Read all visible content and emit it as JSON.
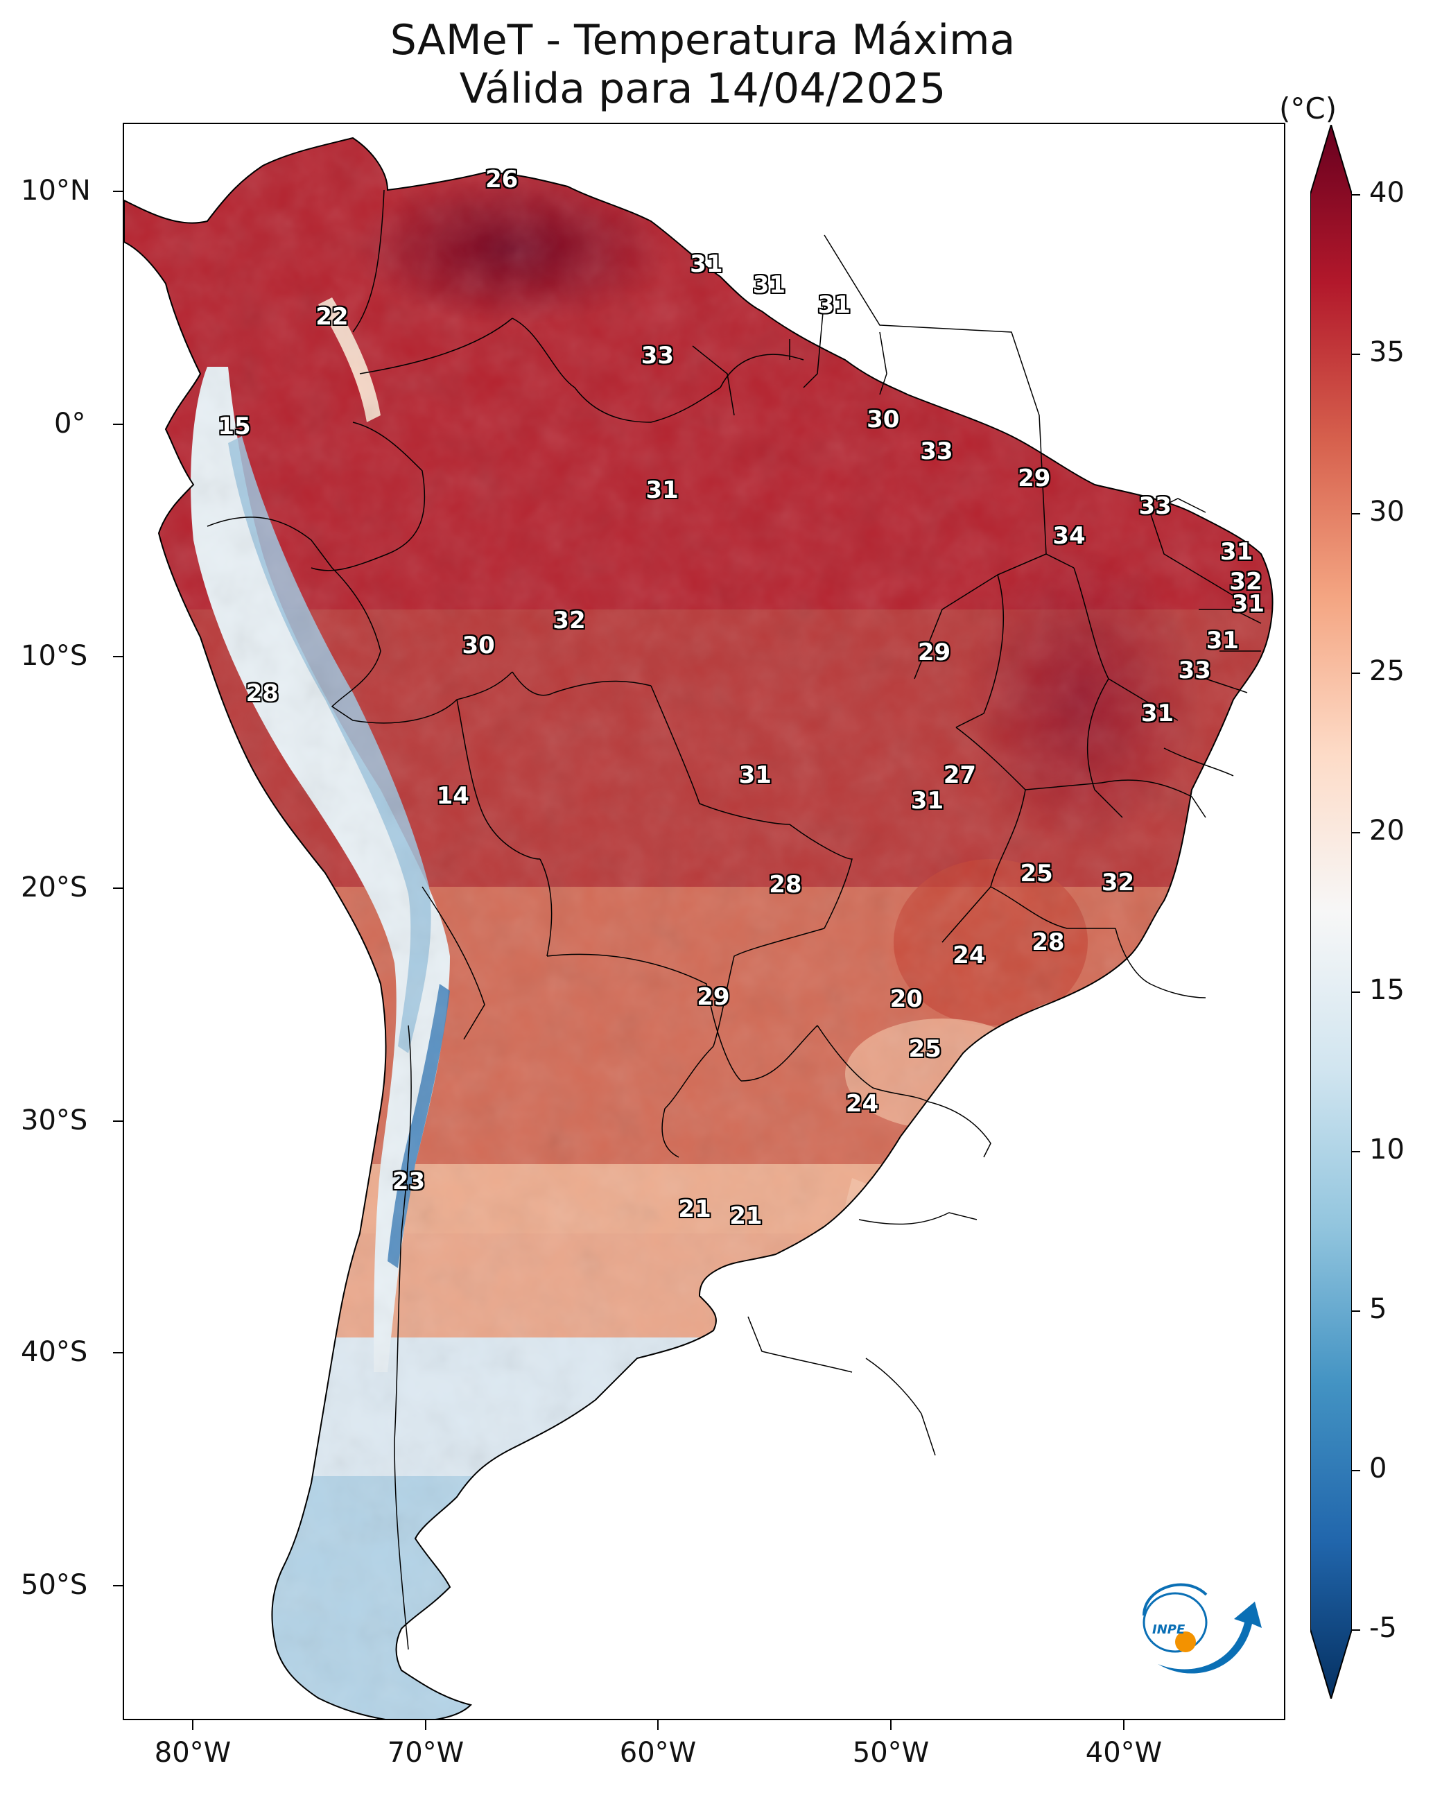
{
  "title": {
    "line1": "SAMeT - Temperatura Máxima",
    "line2": "Válida para 14/04/2025"
  },
  "map": {
    "lon_range": [
      -83,
      -33
    ],
    "lat_range": [
      -57,
      13
    ],
    "lat_labels": [
      "10°N",
      "0°",
      "10°S",
      "20°S",
      "30°S",
      "40°S",
      "50°S"
    ],
    "lat_values": [
      10,
      0,
      -10,
      -20,
      -30,
      -40,
      -50
    ],
    "lon_labels": [
      "80°W",
      "70°W",
      "60°W",
      "50°W",
      "40°W"
    ],
    "lon_values": [
      -80,
      -70,
      -60,
      -50,
      -40
    ],
    "labels": [
      {
        "lon": -66.7,
        "lat": 10.5,
        "text": "26"
      },
      {
        "lon": -74.0,
        "lat": 4.5,
        "text": "22"
      },
      {
        "lon": -78.2,
        "lat": -0.3,
        "text": "15"
      },
      {
        "lon": -57.9,
        "lat": 6.8,
        "text": "31"
      },
      {
        "lon": -55.2,
        "lat": 5.9,
        "text": "31"
      },
      {
        "lon": -52.4,
        "lat": 5.0,
        "text": "31"
      },
      {
        "lon": -60.0,
        "lat": 2.8,
        "text": "33"
      },
      {
        "lon": -59.8,
        "lat": -3.1,
        "text": "31"
      },
      {
        "lon": -50.3,
        "lat": 0.0,
        "text": "30"
      },
      {
        "lon": -48.0,
        "lat": -1.4,
        "text": "33"
      },
      {
        "lon": -43.8,
        "lat": -2.6,
        "text": "29"
      },
      {
        "lon": -38.6,
        "lat": -3.8,
        "text": "33"
      },
      {
        "lon": -42.3,
        "lat": -5.1,
        "text": "34"
      },
      {
        "lon": -35.1,
        "lat": -5.8,
        "text": "31"
      },
      {
        "lon": -34.7,
        "lat": -7.1,
        "text": "32"
      },
      {
        "lon": -34.6,
        "lat": -8.1,
        "text": "31"
      },
      {
        "lon": -35.7,
        "lat": -9.7,
        "text": "31"
      },
      {
        "lon": -36.9,
        "lat": -11.0,
        "text": "33"
      },
      {
        "lon": -38.5,
        "lat": -12.9,
        "text": "31"
      },
      {
        "lon": -48.1,
        "lat": -10.2,
        "text": "29"
      },
      {
        "lon": -63.8,
        "lat": -8.8,
        "text": "32"
      },
      {
        "lon": -67.7,
        "lat": -9.9,
        "text": "30"
      },
      {
        "lon": -77.0,
        "lat": -12.0,
        "text": "28"
      },
      {
        "lon": -55.8,
        "lat": -15.6,
        "text": "31"
      },
      {
        "lon": -47.0,
        "lat": -15.6,
        "text": "27"
      },
      {
        "lon": -48.4,
        "lat": -16.7,
        "text": "31"
      },
      {
        "lon": -68.8,
        "lat": -16.5,
        "text": "14"
      },
      {
        "lon": -43.7,
        "lat": -19.9,
        "text": "25"
      },
      {
        "lon": -40.2,
        "lat": -20.3,
        "text": "32"
      },
      {
        "lon": -54.5,
        "lat": -20.4,
        "text": "28"
      },
      {
        "lon": -43.2,
        "lat": -22.9,
        "text": "28"
      },
      {
        "lon": -46.6,
        "lat": -23.5,
        "text": "24"
      },
      {
        "lon": -57.6,
        "lat": -25.3,
        "text": "29"
      },
      {
        "lon": -49.3,
        "lat": -25.4,
        "text": "20"
      },
      {
        "lon": -48.5,
        "lat": -27.6,
        "text": "25"
      },
      {
        "lon": -51.2,
        "lat": -30.0,
        "text": "24"
      },
      {
        "lon": -70.7,
        "lat": -33.4,
        "text": "23"
      },
      {
        "lon": -58.4,
        "lat": -34.6,
        "text": "21"
      },
      {
        "lon": -56.2,
        "lat": -34.9,
        "text": "21"
      }
    ]
  },
  "colorbar": {
    "unit": "(°C)",
    "min": -5,
    "max": 40,
    "ticks": [
      "40",
      "35",
      "30",
      "25",
      "20",
      "15",
      "10",
      "5",
      "0",
      "-5"
    ],
    "tick_values": [
      40,
      35,
      30,
      25,
      20,
      15,
      10,
      5,
      0,
      -5
    ],
    "colors": [
      "#053061",
      "#2166ac",
      "#4393c3",
      "#92c5de",
      "#d1e5f0",
      "#f7f7f7",
      "#fddbc7",
      "#f4a582",
      "#d6604d",
      "#b2182b",
      "#67001f"
    ]
  },
  "logo": {
    "text": "INPE",
    "color_primary": "#0a6fb5",
    "color_accent": "#f39200"
  }
}
